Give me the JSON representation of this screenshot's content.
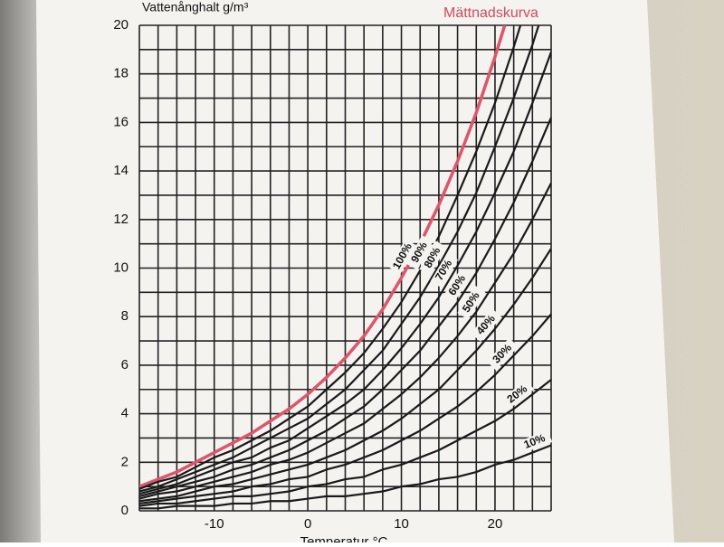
{
  "chart_data": {
    "type": "line",
    "y_label": "Vattenånghalt g/m³",
    "x_label": "Temperatur °C",
    "saturation_label": "Mättnadskurva",
    "x": [
      -18,
      -16,
      -14,
      -12,
      -10,
      -8,
      -6,
      -4,
      -2,
      0,
      2,
      4,
      6,
      8,
      10,
      12,
      14,
      16,
      18,
      20,
      22,
      24,
      26
    ],
    "xlim": [
      -18,
      26
    ],
    "ylim": [
      0,
      20
    ],
    "xticks": [
      -10,
      0,
      10,
      20
    ],
    "yticks": [
      0,
      2,
      4,
      6,
      8,
      10,
      12,
      14,
      16,
      18,
      20
    ],
    "xgrid": [
      -18,
      -16,
      -14,
      -12,
      -10,
      -8,
      -6,
      -4,
      -2,
      0,
      2,
      4,
      6,
      8,
      10,
      12,
      14,
      16,
      18,
      20,
      22,
      24,
      26
    ],
    "ygrid": [
      0,
      1,
      2,
      3,
      4,
      5,
      6,
      7,
      8,
      9,
      10,
      11,
      12,
      13,
      14,
      15,
      16,
      17,
      18,
      19,
      20
    ],
    "grid": true,
    "series": [
      {
        "name": "100%",
        "color": "#e0546a",
        "values": [
          1.0,
          1.3,
          1.6,
          2.0,
          2.4,
          2.8,
          3.2,
          3.7,
          4.2,
          4.8,
          5.5,
          6.3,
          7.2,
          8.3,
          9.6,
          11.0,
          12.6,
          14.4,
          16.4,
          18.7,
          21.2,
          null,
          null
        ]
      },
      {
        "name": "90%",
        "color": "#1a1a1a",
        "values": [
          0.9,
          1.2,
          1.4,
          1.8,
          2.2,
          2.5,
          2.9,
          3.3,
          3.8,
          4.3,
          5.0,
          5.7,
          6.5,
          7.5,
          8.6,
          9.9,
          11.3,
          13.0,
          14.8,
          16.8,
          19.1,
          21.6,
          null
        ]
      },
      {
        "name": "80%",
        "color": "#1a1a1a",
        "values": [
          0.8,
          1.0,
          1.3,
          1.6,
          1.9,
          2.2,
          2.6,
          3.0,
          3.4,
          3.8,
          4.4,
          5.0,
          5.8,
          6.6,
          7.7,
          8.8,
          10.1,
          11.5,
          13.1,
          15.0,
          17.0,
          19.2,
          21.6
        ]
      },
      {
        "name": "70%",
        "color": "#1a1a1a",
        "values": [
          0.7,
          0.9,
          1.1,
          1.4,
          1.7,
          2.0,
          2.2,
          2.6,
          2.9,
          3.4,
          3.9,
          4.4,
          5.0,
          5.8,
          6.7,
          7.7,
          8.8,
          10.1,
          11.5,
          13.1,
          14.8,
          16.8,
          18.9
        ]
      },
      {
        "name": "60%",
        "color": "#1a1a1a",
        "values": [
          0.6,
          0.8,
          1.0,
          1.2,
          1.4,
          1.7,
          1.9,
          2.2,
          2.5,
          2.9,
          3.3,
          3.8,
          4.3,
          5.0,
          5.8,
          6.6,
          7.6,
          8.6,
          9.8,
          11.2,
          12.7,
          14.4,
          16.2
        ]
      },
      {
        "name": "50%",
        "color": "#1a1a1a",
        "values": [
          0.5,
          0.7,
          0.8,
          1.0,
          1.2,
          1.4,
          1.6,
          1.9,
          2.1,
          2.4,
          2.8,
          3.2,
          3.6,
          4.2,
          4.8,
          5.5,
          6.3,
          7.2,
          8.2,
          9.4,
          10.6,
          12.0,
          13.5
        ]
      },
      {
        "name": "40%",
        "color": "#1a1a1a",
        "values": [
          0.4,
          0.5,
          0.6,
          0.8,
          1.0,
          1.1,
          1.3,
          1.5,
          1.7,
          1.9,
          2.2,
          2.5,
          2.9,
          3.3,
          3.8,
          4.4,
          5.0,
          5.8,
          6.6,
          7.5,
          8.5,
          9.6,
          10.8
        ]
      },
      {
        "name": "30%",
        "color": "#1a1a1a",
        "values": [
          0.3,
          0.4,
          0.5,
          0.6,
          0.7,
          0.8,
          1.0,
          1.1,
          1.3,
          1.4,
          1.7,
          1.9,
          2.2,
          2.5,
          2.9,
          3.3,
          3.8,
          4.3,
          4.9,
          5.6,
          6.4,
          7.2,
          8.1
        ]
      },
      {
        "name": "20%",
        "color": "#1a1a1a",
        "values": [
          0.2,
          0.3,
          0.3,
          0.4,
          0.5,
          0.6,
          0.6,
          0.7,
          0.8,
          1.0,
          1.1,
          1.3,
          1.4,
          1.7,
          1.9,
          2.2,
          2.5,
          2.9,
          3.3,
          3.7,
          4.2,
          4.8,
          5.4
        ]
      },
      {
        "name": "10%",
        "color": "#1a1a1a",
        "values": [
          0.1,
          0.1,
          0.2,
          0.2,
          0.2,
          0.3,
          0.3,
          0.4,
          0.4,
          0.5,
          0.6,
          0.6,
          0.7,
          0.8,
          1.0,
          1.1,
          1.3,
          1.4,
          1.6,
          1.9,
          2.1,
          2.4,
          2.7
        ]
      }
    ]
  }
}
